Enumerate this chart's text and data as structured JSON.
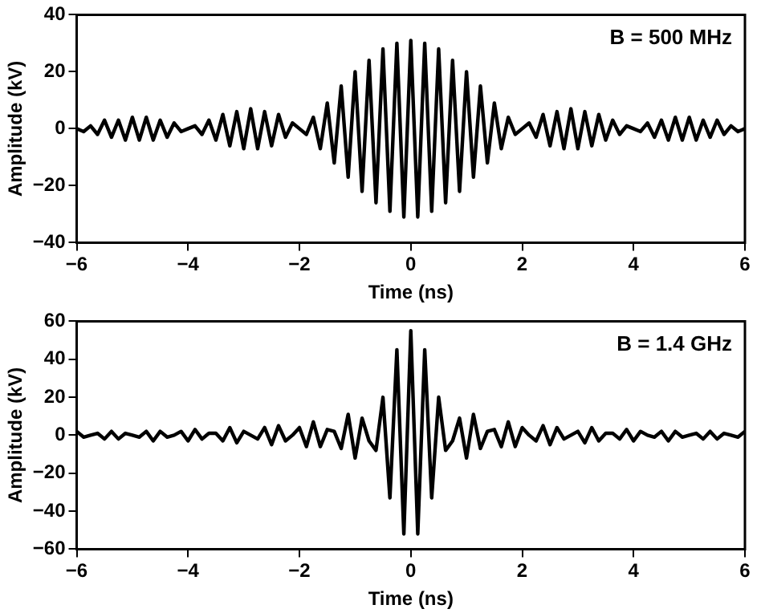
{
  "chart_data": [
    {
      "type": "line",
      "xlabel": "Time (ns)",
      "ylabel": "Amplitude (kV)",
      "annotations": [
        "B = 500 MHz"
      ],
      "xlim": [
        -6,
        6
      ],
      "xticks": [
        -6,
        -4,
        -2,
        0,
        2,
        4,
        6
      ],
      "ylim": [
        -40,
        40
      ],
      "yticks": [
        -40,
        -20,
        0,
        20,
        40
      ],
      "grid": false,
      "legend": false,
      "marker": "none",
      "x": [
        -6,
        -5.875,
        -5.75,
        -5.625,
        -5.5,
        -5.375,
        -5.25,
        -5.125,
        -5,
        -4.875,
        -4.75,
        -4.625,
        -4.5,
        -4.375,
        -4.25,
        -4.125,
        -4,
        -3.875,
        -3.75,
        -3.625,
        -3.5,
        -3.375,
        -3.25,
        -3.125,
        -3,
        -2.875,
        -2.75,
        -2.625,
        -2.5,
        -2.375,
        -2.25,
        -2.125,
        -2,
        -1.875,
        -1.75,
        -1.625,
        -1.5,
        -1.375,
        -1.25,
        -1.125,
        -1,
        -0.875,
        -0.75,
        -0.625,
        -0.5,
        -0.375,
        -0.25,
        -0.125,
        0,
        0.125,
        0.25,
        0.375,
        0.5,
        0.625,
        0.75,
        0.875,
        1,
        1.125,
        1.25,
        1.375,
        1.5,
        1.625,
        1.75,
        1.875,
        2,
        2.125,
        2.25,
        2.375,
        2.5,
        2.625,
        2.75,
        2.875,
        3,
        3.125,
        3.25,
        3.375,
        3.5,
        3.625,
        3.75,
        3.875,
        4,
        4.125,
        4.25,
        4.375,
        4.5,
        4.625,
        4.75,
        4.875,
        5,
        5.125,
        5.25,
        5.375,
        5.5,
        5.625,
        5.75,
        5.875,
        6
      ],
      "series": [
        {
          "color": "#000000",
          "values": [
            0,
            -1,
            1,
            -2,
            3,
            -3,
            3,
            -4,
            4,
            -4,
            4,
            -4,
            3,
            -3,
            2,
            -1,
            0,
            1,
            -2,
            3,
            -4,
            5,
            -6,
            6,
            -7,
            7,
            -7,
            6,
            -6,
            5,
            -3,
            2,
            0,
            -2,
            4,
            -7,
            9,
            -12,
            15,
            -17,
            20,
            -22,
            24,
            -26,
            28,
            -29,
            30,
            -31,
            31,
            -31,
            30,
            -29,
            28,
            -26,
            24,
            -22,
            20,
            -17,
            15,
            -12,
            9,
            -7,
            4,
            -2,
            0,
            2,
            -3,
            5,
            -6,
            6,
            -7,
            7,
            -7,
            6,
            -6,
            5,
            -4,
            3,
            -2,
            1,
            0,
            -1,
            2,
            -3,
            3,
            -4,
            4,
            -4,
            4,
            -4,
            3,
            -3,
            3,
            -2,
            1,
            -1,
            0
          ]
        }
      ]
    },
    {
      "type": "line",
      "xlabel": "Time (ns)",
      "ylabel": "Amplitude (kV)",
      "annotations": [
        "B = 1.4 GHz"
      ],
      "xlim": [
        -6,
        6
      ],
      "xticks": [
        -6,
        -4,
        -2,
        0,
        2,
        4,
        6
      ],
      "ylim": [
        -60,
        60
      ],
      "yticks": [
        -60,
        -40,
        -20,
        0,
        20,
        40,
        60
      ],
      "grid": false,
      "legend": false,
      "marker": "none",
      "x": [
        -6,
        -5.875,
        -5.75,
        -5.625,
        -5.5,
        -5.375,
        -5.25,
        -5.125,
        -5,
        -4.875,
        -4.75,
        -4.625,
        -4.5,
        -4.375,
        -4.25,
        -4.125,
        -4,
        -3.875,
        -3.75,
        -3.625,
        -3.5,
        -3.375,
        -3.25,
        -3.125,
        -3,
        -2.875,
        -2.75,
        -2.625,
        -2.5,
        -2.375,
        -2.25,
        -2.125,
        -2,
        -1.875,
        -1.75,
        -1.625,
        -1.5,
        -1.375,
        -1.25,
        -1.125,
        -1,
        -0.875,
        -0.75,
        -0.625,
        -0.5,
        -0.375,
        -0.25,
        -0.125,
        0,
        0.125,
        0.25,
        0.375,
        0.5,
        0.625,
        0.75,
        0.875,
        1,
        1.125,
        1.25,
        1.375,
        1.5,
        1.625,
        1.75,
        1.875,
        2,
        2.125,
        2.25,
        2.375,
        2.5,
        2.625,
        2.75,
        2.875,
        3,
        3.125,
        3.25,
        3.375,
        3.5,
        3.625,
        3.75,
        3.875,
        4,
        4.125,
        4.25,
        4.375,
        4.5,
        4.625,
        4.75,
        4.875,
        5,
        5.125,
        5.25,
        5.375,
        5.5,
        5.625,
        5.75,
        5.875,
        6
      ],
      "series": [
        {
          "color": "#000000",
          "values": [
            2,
            -1,
            0,
            1,
            -2,
            2,
            -2,
            1,
            0,
            -1,
            2,
            -3,
            2,
            -1,
            0,
            2,
            -3,
            3,
            -2,
            1,
            1,
            -3,
            4,
            -4,
            2,
            0,
            -2,
            4,
            -5,
            5,
            -3,
            0,
            4,
            -6,
            7,
            -6,
            3,
            2,
            -7,
            11,
            -12,
            9,
            -3,
            -8,
            20,
            -33,
            45,
            -52,
            55,
            -52,
            45,
            -33,
            20,
            -8,
            -3,
            9,
            -12,
            11,
            -7,
            2,
            3,
            -6,
            7,
            -6,
            4,
            0,
            -3,
            5,
            -5,
            4,
            -2,
            0,
            2,
            -4,
            4,
            -3,
            1,
            1,
            -2,
            3,
            -3,
            2,
            0,
            -1,
            2,
            -3,
            2,
            -1,
            0,
            1,
            -2,
            2,
            -2,
            1,
            0,
            -1,
            2
          ]
        }
      ]
    }
  ]
}
